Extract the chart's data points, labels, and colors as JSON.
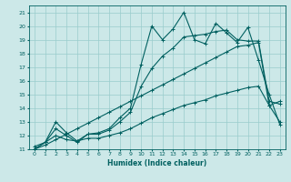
{
  "xlabel": "Humidex (Indice chaleur)",
  "bg_color": "#cce8e8",
  "grid_color": "#99cccc",
  "line_color": "#006060",
  "xlim": [
    -0.5,
    23.5
  ],
  "ylim": [
    11,
    21.5
  ],
  "xticks": [
    0,
    1,
    2,
    3,
    4,
    5,
    6,
    7,
    8,
    9,
    10,
    11,
    12,
    13,
    14,
    15,
    16,
    17,
    18,
    19,
    20,
    21,
    22,
    23
  ],
  "yticks": [
    11,
    12,
    13,
    14,
    15,
    16,
    17,
    18,
    19,
    20,
    21
  ],
  "line1_x": [
    0,
    1,
    2,
    3,
    4,
    5,
    6,
    7,
    8,
    9,
    10,
    11,
    12,
    13,
    14,
    15,
    16,
    17,
    18,
    19,
    20,
    21,
    22,
    23
  ],
  "line1_y": [
    11.0,
    11.5,
    12.5,
    12.0,
    11.5,
    12.1,
    12.2,
    12.5,
    13.3,
    14.0,
    17.2,
    20.0,
    19.0,
    19.8,
    21.0,
    19.0,
    18.7,
    20.2,
    19.5,
    18.8,
    19.9,
    17.5,
    15.0,
    12.8
  ],
  "line2_x": [
    0,
    1,
    2,
    3,
    4,
    5,
    6,
    7,
    8,
    9,
    10,
    11,
    12,
    13,
    14,
    15,
    16,
    17,
    18,
    19,
    20,
    21,
    22,
    23
  ],
  "line2_y": [
    11.0,
    11.5,
    13.0,
    12.2,
    11.6,
    12.1,
    12.1,
    12.4,
    13.0,
    13.7,
    15.6,
    16.9,
    17.8,
    18.4,
    19.2,
    19.3,
    19.4,
    19.6,
    19.7,
    19.0,
    18.9,
    18.9,
    14.5,
    14.3
  ],
  "line3_x": [
    0,
    1,
    2,
    3,
    4,
    5,
    6,
    7,
    8,
    9,
    10,
    11,
    12,
    13,
    14,
    15,
    16,
    17,
    18,
    19,
    20,
    21,
    22,
    23
  ],
  "line3_y": [
    11.2,
    11.5,
    12.0,
    11.7,
    11.6,
    11.8,
    11.8,
    12.0,
    12.2,
    12.5,
    12.9,
    13.3,
    13.6,
    13.9,
    14.2,
    14.4,
    14.6,
    14.9,
    15.1,
    15.3,
    15.5,
    15.6,
    14.2,
    13.0
  ],
  "line4_x": [
    0,
    1,
    2,
    3,
    4,
    5,
    6,
    7,
    8,
    9,
    10,
    11,
    12,
    13,
    14,
    15,
    16,
    17,
    18,
    19,
    20,
    21,
    22,
    23
  ],
  "line4_y": [
    11.0,
    11.3,
    11.7,
    12.1,
    12.5,
    12.9,
    13.3,
    13.7,
    14.1,
    14.5,
    14.9,
    15.3,
    15.7,
    16.1,
    16.5,
    16.9,
    17.3,
    17.7,
    18.1,
    18.5,
    18.6,
    18.8,
    14.2,
    14.5
  ]
}
